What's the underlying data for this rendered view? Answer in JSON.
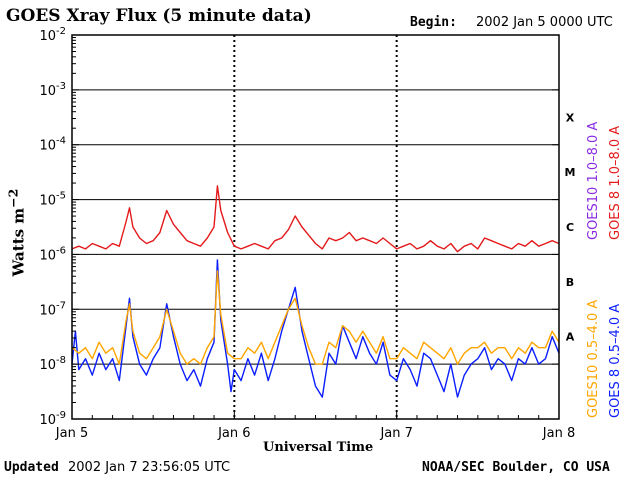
{
  "header": {
    "title": "GOES Xray Flux (5 minute data)",
    "begin_label": "Begin:",
    "begin_value": "2002 Jan 5 0000 UTC"
  },
  "footer": {
    "updated_label": "Updated",
    "updated_value": "2002 Jan  7 23:56:05 UTC",
    "credit": "NOAA/SEC Boulder, CO USA"
  },
  "legend": {
    "goes10_long": "GOES10 1.0–8.0 A",
    "goes8_long": "GOES 8 1.0–8.0 A",
    "goes10_short": "GOES10 0.5–4.0 A",
    "goes8_short": "GOES 8 0.5–4.0 A"
  },
  "colors": {
    "goes10_long": "#8a2be2",
    "goes8_long": "#e31a1c",
    "goes10_short": "#ffa500",
    "goes8_short": "#0a1eff"
  },
  "chart_data": {
    "type": "line",
    "title": "GOES Xray Flux (5 minute data)",
    "xlabel": "Universal Time",
    "ylabel": "Watts m⁻²",
    "yscale": "log",
    "ylim": [
      1e-09,
      0.01
    ],
    "xlim": [
      0,
      72
    ],
    "x_unit": "hours since 2002 Jan 5 0000 UTC",
    "xticks": [
      {
        "x": 0,
        "label": "Jan 5"
      },
      {
        "x": 24,
        "label": "Jan 6"
      },
      {
        "x": 48,
        "label": "Jan 7"
      },
      {
        "x": 72,
        "label": "Jan 8"
      }
    ],
    "yticks": [
      {
        "exp": -2,
        "base": "10",
        "sup": "-2"
      },
      {
        "exp": -3,
        "base": "10",
        "sup": "-3"
      },
      {
        "exp": -4,
        "base": "10",
        "sup": "-4"
      },
      {
        "exp": -5,
        "base": "10",
        "sup": "-5"
      },
      {
        "exp": -6,
        "base": "10",
        "sup": "-6"
      },
      {
        "exp": -7,
        "base": "10",
        "sup": "-7"
      },
      {
        "exp": -8,
        "base": "10",
        "sup": "-8"
      },
      {
        "exp": -9,
        "base": "10",
        "sup": "-9"
      }
    ],
    "flare_classes": [
      {
        "label": "X",
        "exp": -3.5
      },
      {
        "label": "M",
        "exp": -4.5
      },
      {
        "label": "C",
        "exp": -5.5
      },
      {
        "label": "B",
        "exp": -6.5
      },
      {
        "label": "A",
        "exp": -7.5
      }
    ],
    "hgrid_exps": [
      -3,
      -4,
      -5,
      -6,
      -7,
      -8
    ],
    "series": [
      {
        "name": "GOES 8 1.0-8.0 A",
        "color": "#e31a1c",
        "points": [
          [
            0,
            -5.9
          ],
          [
            1,
            -5.85
          ],
          [
            2,
            -5.9
          ],
          [
            3,
            -5.8
          ],
          [
            4,
            -5.85
          ],
          [
            5,
            -5.9
          ],
          [
            6,
            -5.8
          ],
          [
            7,
            -5.85
          ],
          [
            8,
            -5.4
          ],
          [
            8.5,
            -5.15
          ],
          [
            9,
            -5.5
          ],
          [
            10,
            -5.7
          ],
          [
            11,
            -5.8
          ],
          [
            12,
            -5.75
          ],
          [
            13,
            -5.6
          ],
          [
            14,
            -5.2
          ],
          [
            15,
            -5.45
          ],
          [
            16,
            -5.6
          ],
          [
            17,
            -5.75
          ],
          [
            18,
            -5.8
          ],
          [
            19,
            -5.85
          ],
          [
            20,
            -5.7
          ],
          [
            21,
            -5.5
          ],
          [
            21.5,
            -4.75
          ],
          [
            22,
            -5.2
          ],
          [
            23,
            -5.6
          ],
          [
            24,
            -5.85
          ],
          [
            25,
            -5.9
          ],
          [
            26,
            -5.85
          ],
          [
            27,
            -5.8
          ],
          [
            28,
            -5.85
          ],
          [
            29,
            -5.9
          ],
          [
            30,
            -5.75
          ],
          [
            31,
            -5.7
          ],
          [
            32,
            -5.55
          ],
          [
            33,
            -5.3
          ],
          [
            34,
            -5.5
          ],
          [
            35,
            -5.65
          ],
          [
            36,
            -5.8
          ],
          [
            37,
            -5.9
          ],
          [
            38,
            -5.7
          ],
          [
            39,
            -5.75
          ],
          [
            40,
            -5.7
          ],
          [
            41,
            -5.6
          ],
          [
            42,
            -5.75
          ],
          [
            43,
            -5.7
          ],
          [
            44,
            -5.75
          ],
          [
            45,
            -5.8
          ],
          [
            46,
            -5.7
          ],
          [
            47,
            -5.8
          ],
          [
            48,
            -5.9
          ],
          [
            49,
            -5.85
          ],
          [
            50,
            -5.8
          ],
          [
            51,
            -5.9
          ],
          [
            52,
            -5.85
          ],
          [
            53,
            -5.75
          ],
          [
            54,
            -5.85
          ],
          [
            55,
            -5.9
          ],
          [
            56,
            -5.8
          ],
          [
            57,
            -5.95
          ],
          [
            58,
            -5.85
          ],
          [
            59,
            -5.8
          ],
          [
            60,
            -5.9
          ],
          [
            61,
            -5.7
          ],
          [
            62,
            -5.75
          ],
          [
            63,
            -5.8
          ],
          [
            64,
            -5.85
          ],
          [
            65,
            -5.9
          ],
          [
            66,
            -5.8
          ],
          [
            67,
            -5.85
          ],
          [
            68,
            -5.75
          ],
          [
            69,
            -5.85
          ],
          [
            70,
            -5.8
          ],
          [
            71,
            -5.75
          ],
          [
            72,
            -5.8
          ]
        ]
      },
      {
        "name": "GOES 8 0.5-4.0 A",
        "color": "#0a1eff",
        "points": [
          [
            0,
            -8.0
          ],
          [
            0.5,
            -7.4
          ],
          [
            1,
            -8.1
          ],
          [
            2,
            -7.9
          ],
          [
            3,
            -8.2
          ],
          [
            4,
            -7.8
          ],
          [
            5,
            -8.1
          ],
          [
            6,
            -7.9
          ],
          [
            7,
            -8.3
          ],
          [
            8,
            -7.3
          ],
          [
            8.5,
            -6.8
          ],
          [
            9,
            -7.5
          ],
          [
            10,
            -8.0
          ],
          [
            11,
            -8.2
          ],
          [
            12,
            -7.9
          ],
          [
            13,
            -7.7
          ],
          [
            14,
            -6.9
          ],
          [
            15,
            -7.5
          ],
          [
            16,
            -8.0
          ],
          [
            17,
            -8.3
          ],
          [
            18,
            -8.1
          ],
          [
            19,
            -8.4
          ],
          [
            20,
            -7.9
          ],
          [
            21,
            -7.6
          ],
          [
            21.5,
            -6.1
          ],
          [
            22,
            -7.2
          ],
          [
            23,
            -8.0
          ],
          [
            23.5,
            -8.5
          ],
          [
            24,
            -8.1
          ],
          [
            25,
            -8.3
          ],
          [
            26,
            -7.9
          ],
          [
            27,
            -8.2
          ],
          [
            28,
            -7.8
          ],
          [
            29,
            -8.3
          ],
          [
            30,
            -7.9
          ],
          [
            31,
            -7.4
          ],
          [
            32,
            -7.0
          ],
          [
            33,
            -6.6
          ],
          [
            34,
            -7.4
          ],
          [
            35,
            -7.9
          ],
          [
            36,
            -8.4
          ],
          [
            37,
            -8.6
          ],
          [
            38,
            -7.8
          ],
          [
            39,
            -8.0
          ],
          [
            40,
            -7.3
          ],
          [
            41,
            -7.6
          ],
          [
            42,
            -7.9
          ],
          [
            43,
            -7.5
          ],
          [
            44,
            -7.8
          ],
          [
            45,
            -8.0
          ],
          [
            46,
            -7.6
          ],
          [
            47,
            -8.2
          ],
          [
            48,
            -8.3
          ],
          [
            49,
            -7.9
          ],
          [
            50,
            -8.1
          ],
          [
            51,
            -8.4
          ],
          [
            52,
            -7.8
          ],
          [
            53,
            -7.9
          ],
          [
            54,
            -8.2
          ],
          [
            55,
            -8.5
          ],
          [
            56,
            -8.0
          ],
          [
            57,
            -8.6
          ],
          [
            58,
            -8.2
          ],
          [
            59,
            -8.0
          ],
          [
            60,
            -7.9
          ],
          [
            61,
            -7.7
          ],
          [
            62,
            -8.1
          ],
          [
            63,
            -7.9
          ],
          [
            64,
            -8.0
          ],
          [
            65,
            -8.3
          ],
          [
            66,
            -7.9
          ],
          [
            67,
            -8.0
          ],
          [
            68,
            -7.7
          ],
          [
            69,
            -8.0
          ],
          [
            70,
            -7.9
          ],
          [
            71,
            -7.5
          ],
          [
            72,
            -7.8
          ]
        ]
      },
      {
        "name": "GOES10 0.5-4.0 A",
        "color": "#ffa500",
        "points": [
          [
            0,
            -7.7
          ],
          [
            1,
            -7.8
          ],
          [
            2,
            -7.7
          ],
          [
            3,
            -7.9
          ],
          [
            4,
            -7.6
          ],
          [
            5,
            -7.8
          ],
          [
            6,
            -7.7
          ],
          [
            7,
            -8.0
          ],
          [
            8,
            -7.2
          ],
          [
            8.5,
            -6.9
          ],
          [
            9,
            -7.4
          ],
          [
            10,
            -7.8
          ],
          [
            11,
            -7.9
          ],
          [
            12,
            -7.7
          ],
          [
            13,
            -7.5
          ],
          [
            14,
            -7.0
          ],
          [
            15,
            -7.4
          ],
          [
            16,
            -7.8
          ],
          [
            17,
            -8.0
          ],
          [
            18,
            -7.9
          ],
          [
            19,
            -8.0
          ],
          [
            20,
            -7.7
          ],
          [
            21,
            -7.5
          ],
          [
            21.5,
            -6.3
          ],
          [
            22,
            -7.1
          ],
          [
            23,
            -7.8
          ],
          [
            24,
            -7.9
          ],
          [
            25,
            -7.9
          ],
          [
            26,
            -7.7
          ],
          [
            27,
            -7.8
          ],
          [
            28,
            -7.6
          ],
          [
            29,
            -7.9
          ],
          [
            30,
            -7.6
          ],
          [
            31,
            -7.3
          ],
          [
            32,
            -7.0
          ],
          [
            33,
            -6.8
          ],
          [
            34,
            -7.3
          ],
          [
            35,
            -7.7
          ],
          [
            36,
            -8.0
          ],
          [
            37,
            -8.0
          ],
          [
            38,
            -7.6
          ],
          [
            39,
            -7.7
          ],
          [
            40,
            -7.3
          ],
          [
            41,
            -7.4
          ],
          [
            42,
            -7.6
          ],
          [
            43,
            -7.4
          ],
          [
            44,
            -7.6
          ],
          [
            45,
            -7.8
          ],
          [
            46,
            -7.5
          ],
          [
            47,
            -7.9
          ],
          [
            48,
            -7.9
          ],
          [
            49,
            -7.7
          ],
          [
            50,
            -7.8
          ],
          [
            51,
            -7.9
          ],
          [
            52,
            -7.6
          ],
          [
            53,
            -7.7
          ],
          [
            54,
            -7.8
          ],
          [
            55,
            -7.9
          ],
          [
            56,
            -7.7
          ],
          [
            57,
            -8.0
          ],
          [
            58,
            -7.8
          ],
          [
            59,
            -7.7
          ],
          [
            60,
            -7.7
          ],
          [
            61,
            -7.6
          ],
          [
            62,
            -7.8
          ],
          [
            63,
            -7.7
          ],
          [
            64,
            -7.7
          ],
          [
            65,
            -7.9
          ],
          [
            66,
            -7.7
          ],
          [
            67,
            -7.8
          ],
          [
            68,
            -7.6
          ],
          [
            69,
            -7.7
          ],
          [
            70,
            -7.7
          ],
          [
            71,
            -7.4
          ],
          [
            72,
            -7.6
          ]
        ]
      }
    ]
  }
}
